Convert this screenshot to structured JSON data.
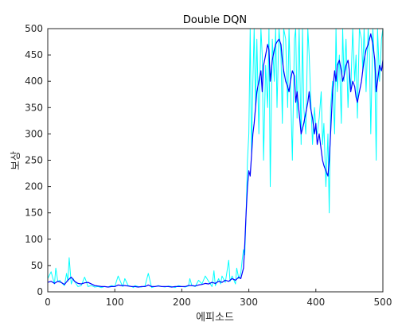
{
  "chart_data": {
    "type": "line",
    "title": "Double DQN",
    "xlabel": "에피소드",
    "ylabel": "보상",
    "xlim": [
      0,
      500
    ],
    "ylim": [
      0,
      500
    ],
    "xticks": [
      0,
      100,
      200,
      300,
      400,
      500
    ],
    "yticks": [
      0,
      50,
      100,
      150,
      200,
      250,
      300,
      350,
      400,
      450,
      500
    ],
    "grid": false,
    "legend": "none",
    "series": [
      {
        "color": "#00ffff",
        "x": [
          0,
          5,
          10,
          12,
          15,
          18,
          20,
          25,
          28,
          30,
          32,
          35,
          38,
          40,
          45,
          50,
          55,
          58,
          60,
          65,
          70,
          75,
          80,
          85,
          90,
          95,
          100,
          105,
          110,
          112,
          115,
          120,
          125,
          128,
          130,
          135,
          140,
          145,
          150,
          155,
          160,
          165,
          170,
          175,
          180,
          185,
          190,
          195,
          200,
          205,
          210,
          212,
          215,
          220,
          225,
          230,
          235,
          240,
          245,
          248,
          250,
          255,
          258,
          260,
          265,
          270,
          272,
          275,
          280,
          282,
          285,
          288,
          290,
          292,
          294,
          296,
          298,
          300,
          302,
          304,
          306,
          308,
          310,
          312,
          315,
          318,
          320,
          322,
          325,
          328,
          330,
          332,
          335,
          338,
          340,
          342,
          345,
          348,
          350,
          352,
          355,
          358,
          360,
          362,
          365,
          368,
          370,
          372,
          375,
          378,
          380,
          382,
          385,
          388,
          390,
          392,
          395,
          398,
          400,
          402,
          405,
          408,
          410,
          412,
          415,
          418,
          420,
          422,
          425,
          428,
          430,
          432,
          435,
          438,
          440,
          442,
          445,
          448,
          450,
          452,
          455,
          458,
          460,
          462,
          465,
          468,
          470,
          472,
          475,
          478,
          480,
          482,
          485,
          488,
          490,
          492,
          495,
          498,
          500
        ],
        "y": [
          25,
          38,
          15,
          45,
          20,
          22,
          18,
          12,
          35,
          20,
          65,
          15,
          25,
          20,
          10,
          12,
          28,
          18,
          10,
          12,
          9,
          10,
          8,
          10,
          9,
          12,
          10,
          30,
          15,
          10,
          25,
          12,
          10,
          8,
          12,
          10,
          9,
          11,
          35,
          8,
          10,
          12,
          10,
          9,
          11,
          10,
          8,
          12,
          10,
          9,
          11,
          25,
          12,
          10,
          22,
          15,
          30,
          20,
          10,
          40,
          12,
          25,
          15,
          30,
          18,
          60,
          20,
          30,
          15,
          45,
          25,
          35,
          60,
          80,
          70,
          150,
          250,
          300,
          500,
          260,
          400,
          500,
          350,
          480,
          300,
          500,
          450,
          250,
          430,
          350,
          500,
          200,
          480,
          400,
          500,
          350,
          500,
          450,
          320,
          500,
          480,
          350,
          500,
          400,
          250,
          480,
          500,
          330,
          500,
          280,
          500,
          350,
          300,
          500,
          450,
          380,
          280,
          350,
          310,
          300,
          330,
          380,
          280,
          320,
          200,
          300,
          150,
          350,
          400,
          300,
          500,
          380,
          450,
          320,
          500,
          400,
          480,
          350,
          420,
          380,
          500,
          400,
          450,
          330,
          500,
          480,
          420,
          500,
          380,
          500,
          450,
          300,
          500,
          420,
          250,
          500,
          400,
          480,
          500
        ]
      },
      {
        "color": "#0000ff",
        "x": [
          0,
          5,
          10,
          15,
          20,
          25,
          30,
          35,
          40,
          45,
          50,
          55,
          60,
          65,
          70,
          75,
          80,
          85,
          90,
          95,
          100,
          105,
          110,
          115,
          120,
          125,
          130,
          135,
          140,
          145,
          150,
          155,
          160,
          165,
          170,
          175,
          180,
          185,
          190,
          195,
          200,
          205,
          210,
          215,
          220,
          225,
          230,
          235,
          240,
          245,
          250,
          255,
          260,
          265,
          270,
          275,
          280,
          285,
          288,
          290,
          292,
          294,
          296,
          298,
          300,
          302,
          304,
          306,
          308,
          310,
          312,
          315,
          318,
          320,
          322,
          325,
          328,
          330,
          332,
          335,
          338,
          340,
          342,
          345,
          348,
          350,
          352,
          355,
          358,
          360,
          362,
          365,
          368,
          370,
          372,
          375,
          378,
          380,
          382,
          385,
          388,
          390,
          392,
          395,
          398,
          400,
          402,
          405,
          408,
          410,
          412,
          415,
          418,
          420,
          422,
          425,
          428,
          430,
          432,
          435,
          438,
          440,
          442,
          445,
          448,
          450,
          452,
          455,
          458,
          460,
          462,
          465,
          468,
          470,
          472,
          475,
          478,
          480,
          482,
          485,
          488,
          490,
          492,
          495,
          498,
          500
        ],
        "y": [
          18,
          20,
          16,
          20,
          18,
          14,
          22,
          28,
          20,
          16,
          15,
          17,
          18,
          15,
          12,
          11,
          10,
          10,
          9,
          10,
          10,
          13,
          12,
          12,
          11,
          10,
          10,
          9,
          10,
          10,
          13,
          10,
          10,
          11,
          10,
          10,
          10,
          9,
          10,
          10,
          10,
          10,
          12,
          12,
          11,
          13,
          14,
          16,
          15,
          18,
          16,
          20,
          18,
          22,
          20,
          25,
          22,
          28,
          25,
          35,
          45,
          90,
          150,
          200,
          230,
          220,
          260,
          300,
          320,
          350,
          380,
          400,
          420,
          380,
          430,
          450,
          470,
          460,
          400,
          440,
          460,
          470,
          475,
          480,
          470,
          440,
          420,
          400,
          390,
          380,
          400,
          420,
          410,
          360,
          380,
          340,
          300,
          310,
          320,
          340,
          360,
          380,
          350,
          330,
          300,
          320,
          280,
          300,
          270,
          250,
          240,
          230,
          220,
          250,
          300,
          380,
          420,
          400,
          430,
          440,
          420,
          400,
          410,
          430,
          440,
          420,
          380,
          400,
          390,
          370,
          360,
          380,
          400,
          420,
          440,
          460,
          470,
          480,
          490,
          470,
          440,
          380,
          400,
          430,
          420,
          440
        ]
      }
    ]
  }
}
